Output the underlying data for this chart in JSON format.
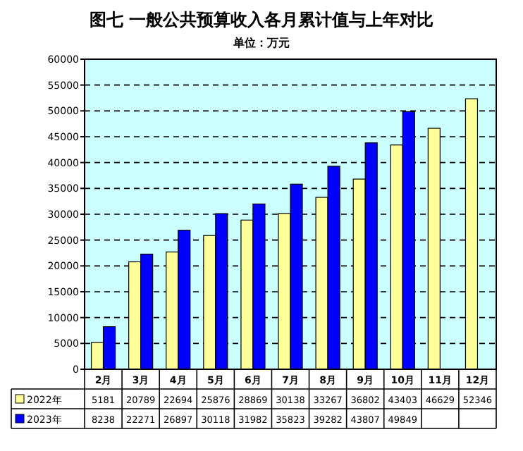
{
  "chart_data": {
    "type": "bar",
    "title": "图七  一般公共预算收入各月累计值与上年对比",
    "subtitle": "单位：万元",
    "categories": [
      "2月",
      "3月",
      "4月",
      "5月",
      "6月",
      "7月",
      "8月",
      "9月",
      "10月",
      "11月",
      "12月"
    ],
    "series": [
      {
        "name": "2022年",
        "color": "#ffff99",
        "values": [
          5181,
          20789,
          22694,
          25876,
          28869,
          30138,
          33267,
          36802,
          43403,
          46629,
          52346
        ]
      },
      {
        "name": "2023年",
        "color": "#0000ff",
        "values": [
          8238,
          22271,
          26897,
          30118,
          31982,
          35823,
          39282,
          43807,
          49849,
          null,
          null
        ]
      }
    ],
    "ylim": [
      0,
      60000
    ],
    "yticks": [
      0,
      5000,
      10000,
      15000,
      20000,
      25000,
      30000,
      35000,
      40000,
      45000,
      50000,
      55000,
      60000
    ],
    "grid": "y",
    "data_labels": true,
    "legend": "bottom"
  }
}
